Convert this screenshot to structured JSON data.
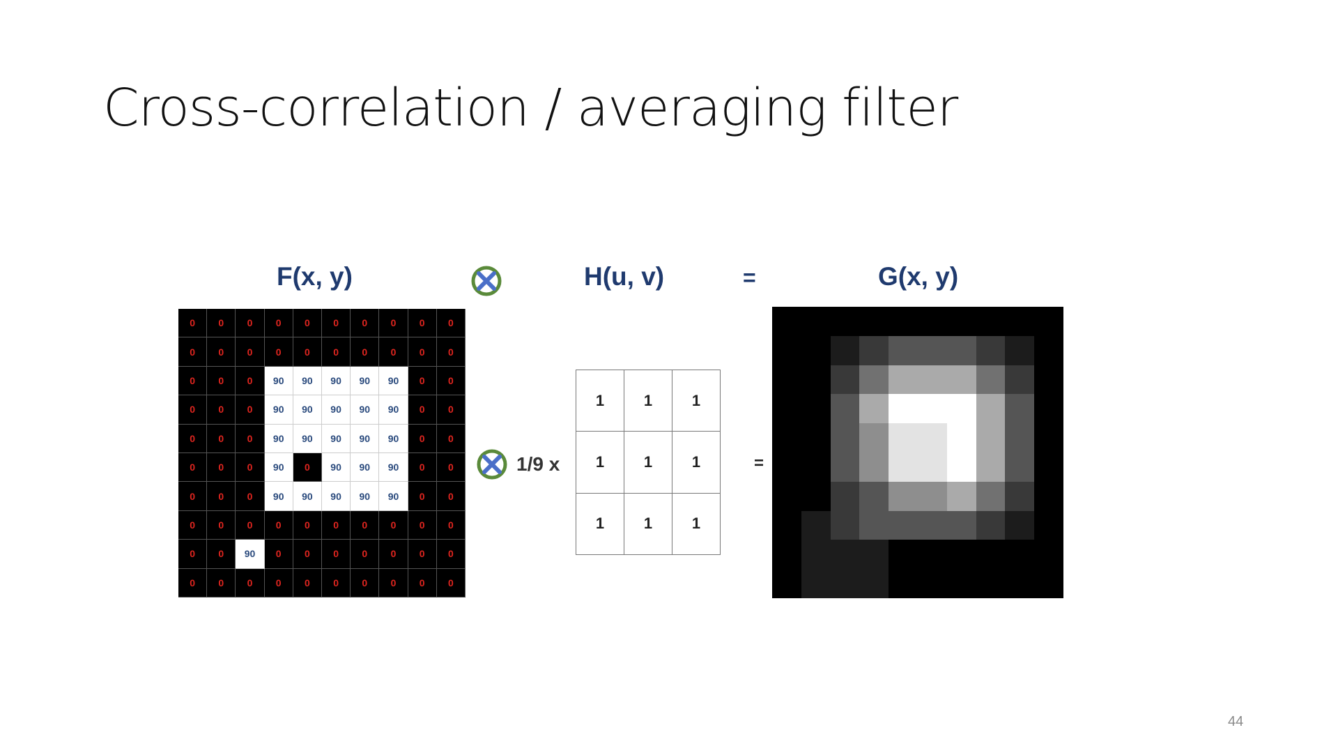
{
  "slide": {
    "title": "Cross-correlation / averaging filter",
    "page_number": "44"
  },
  "labels": {
    "f": "F(x, y)",
    "h": "H(u, v)",
    "g": "G(x, y)",
    "equals": "=",
    "scale": "1/9 x"
  },
  "colors": {
    "zero_text": "#e0251f",
    "ninety_text": "#2a4a7d",
    "label_text": "#1f3a6e",
    "otimes_ring": "#5a8a3a",
    "otimes_cross": "#4a6fc8"
  },
  "icons": [
    "convolution-operator-icon"
  ],
  "f_matrix": [
    [
      "0",
      "0",
      "0",
      "0",
      "0",
      "0",
      "0",
      "0",
      "0",
      "0"
    ],
    [
      "0",
      "0",
      "0",
      "0",
      "0",
      "0",
      "0",
      "0",
      "0",
      "0"
    ],
    [
      "0",
      "0",
      "0",
      "90",
      "90",
      "90",
      "90",
      "90",
      "0",
      "0"
    ],
    [
      "0",
      "0",
      "0",
      "90",
      "90",
      "90",
      "90",
      "90",
      "0",
      "0"
    ],
    [
      "0",
      "0",
      "0",
      "90",
      "90",
      "90",
      "90",
      "90",
      "0",
      "0"
    ],
    [
      "0",
      "0",
      "0",
      "90",
      "0",
      "90",
      "90",
      "90",
      "0",
      "0"
    ],
    [
      "0",
      "0",
      "0",
      "90",
      "90",
      "90",
      "90",
      "90",
      "0",
      "0"
    ],
    [
      "0",
      "0",
      "0",
      "0",
      "0",
      "0",
      "0",
      "0",
      "0",
      "0"
    ],
    [
      "0",
      "0",
      "90",
      "0",
      "0",
      "0",
      "0",
      "0",
      "0",
      "0"
    ],
    [
      "0",
      "0",
      "0",
      "0",
      "0",
      "0",
      "0",
      "0",
      "0",
      "0"
    ]
  ],
  "h_matrix": [
    [
      "1",
      "1",
      "1"
    ],
    [
      "1",
      "1",
      "1"
    ],
    [
      "1",
      "1",
      "1"
    ]
  ],
  "g_matrix": [
    [
      0,
      0,
      0,
      0,
      0,
      0,
      0,
      0,
      0,
      0
    ],
    [
      0,
      0,
      10,
      20,
      30,
      30,
      30,
      20,
      10,
      0
    ],
    [
      0,
      0,
      20,
      40,
      60,
      60,
      60,
      40,
      20,
      0
    ],
    [
      0,
      0,
      30,
      60,
      90,
      90,
      90,
      60,
      30,
      0
    ],
    [
      0,
      0,
      30,
      50,
      80,
      80,
      90,
      60,
      30,
      0
    ],
    [
      0,
      0,
      30,
      50,
      80,
      80,
      90,
      60,
      30,
      0
    ],
    [
      0,
      0,
      20,
      30,
      50,
      50,
      60,
      40,
      20,
      0
    ],
    [
      0,
      10,
      20,
      30,
      30,
      30,
      30,
      20,
      10,
      0
    ],
    [
      0,
      10,
      10,
      10,
      0,
      0,
      0,
      0,
      0,
      0
    ],
    [
      0,
      10,
      10,
      10,
      0,
      0,
      0,
      0,
      0,
      0
    ]
  ]
}
